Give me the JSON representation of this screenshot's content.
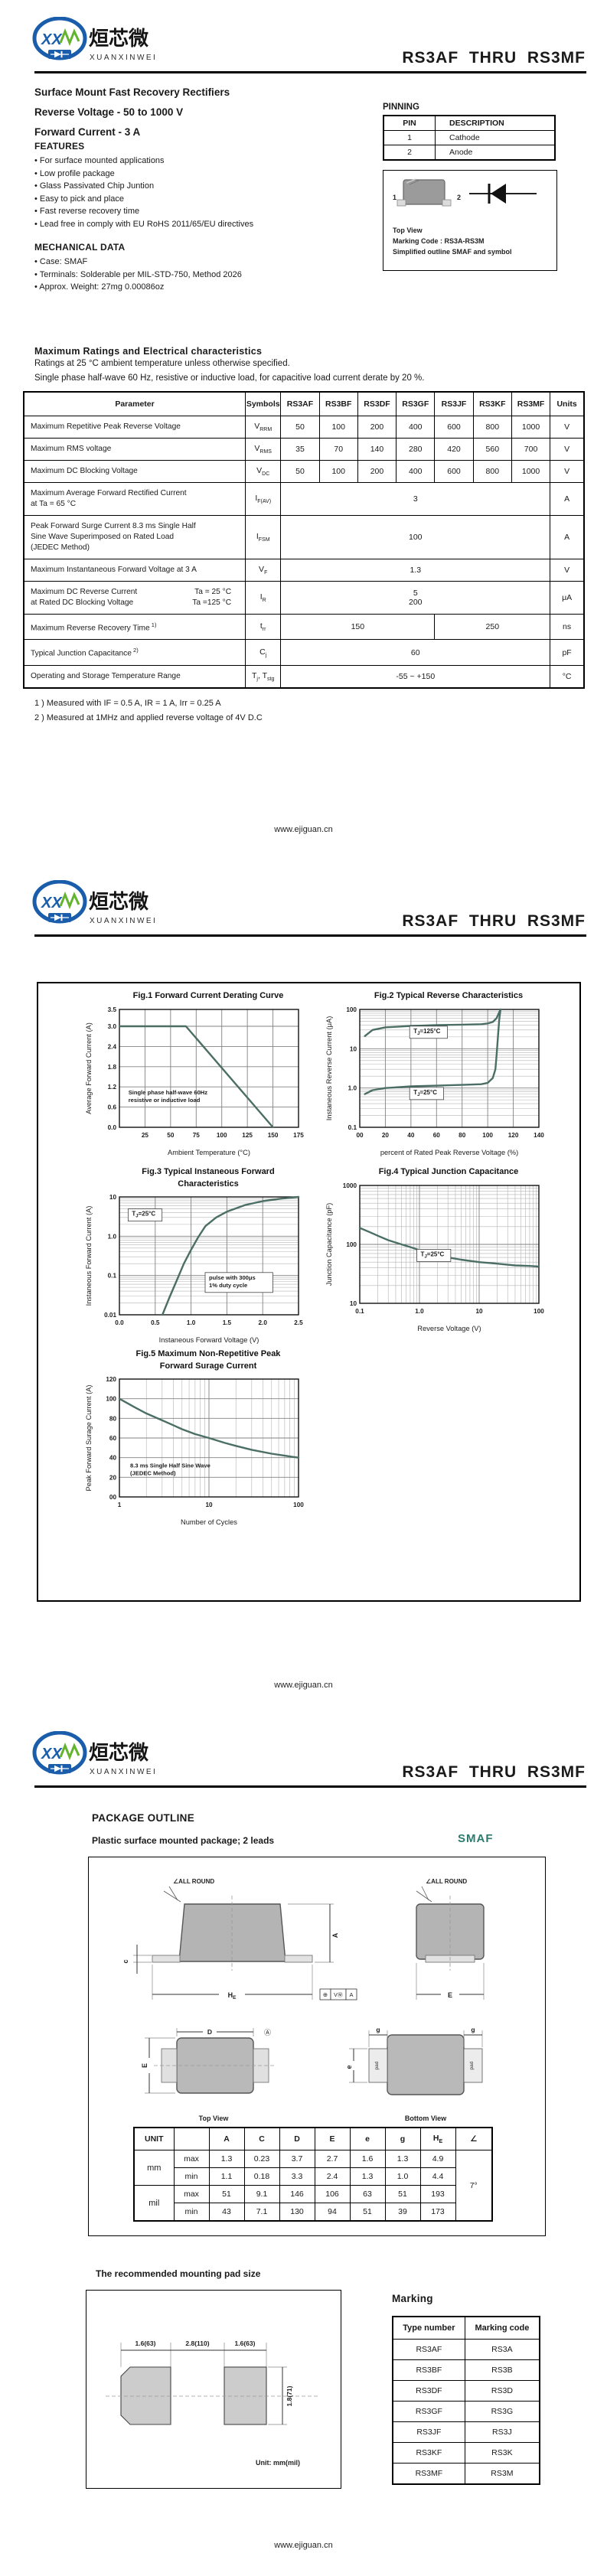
{
  "website": "www.ejiguan.cn",
  "part_title": "RS3AF  THRU  RS3MF",
  "logo": {
    "cn": "烜芯微",
    "en": "XUANXINWEI",
    "monogram": "XX"
  },
  "colors": {
    "accent_teal": "#2c7a6e",
    "chart_curve": "#4b6e65",
    "logo_blue": "#1a5dab",
    "logo_green": "#63b32e"
  },
  "page1": {
    "subtitles": [
      "Surface Mount Fast Recovery Rectifiers",
      "Reverse Voltage - 50 to 1000 V",
      "Forward Current - 3 A"
    ],
    "features": {
      "title": "FEATURES",
      "items": [
        "For surface mounted applications",
        "Low profile package",
        "Glass Passivated Chip Juntion",
        "Easy to pick and place",
        "Fast reverse recovery time",
        "Lead free in comply with EU RoHS 2011/65/EU directives"
      ]
    },
    "mechanical": {
      "title": "MECHANICAL DATA",
      "items": [
        "Case: SMAF",
        "Terminals: Solderable per MIL-STD-750, Method 2026",
        "Approx. Weight:  27mg  0.00086oz"
      ]
    },
    "pinning": {
      "title": "PINNING",
      "headers": [
        "PIN",
        "DESCRIPTION"
      ],
      "rows": [
        [
          "1",
          "Cathode"
        ],
        [
          "2",
          "Anode"
        ]
      ]
    },
    "outline_figure": {
      "pin1": "1",
      "pin2": "2",
      "top_view": "Top View",
      "marking": "Marking Code :  RS3A-RS3M",
      "caption": "Simplified outline SMAF and symbol"
    },
    "ratings": {
      "title": "Maximum Ratings and Electrical characteristics",
      "cond1": "Ratings at 25 °C ambient temperature unless otherwise specified.",
      "cond2": "Single phase half-wave 60 Hz, resistive or inductive load, for capacitive load current derate by 20 %.",
      "headers": [
        "Parameter",
        "Symbols",
        "RS3AF",
        "RS3BF",
        "RS3DF",
        "RS3GF",
        "RS3JF",
        "RS3KF",
        "RS3MF",
        "Units"
      ],
      "rows": [
        {
          "param": [
            "Maximum Repetitive Peak Reverse Voltage"
          ],
          "sym": [
            [
              "V",
              "RRM"
            ]
          ],
          "cells": [
            "50",
            "100",
            "200",
            "400",
            "600",
            "800",
            "1000"
          ],
          "unit": "V"
        },
        {
          "param": [
            "Maximum RMS voltage"
          ],
          "sym": [
            [
              "V",
              "RMS"
            ]
          ],
          "cells": [
            "35",
            "70",
            "140",
            "280",
            "420",
            "560",
            "700"
          ],
          "unit": "V"
        },
        {
          "param": [
            "Maximum DC Blocking Voltage"
          ],
          "sym": [
            [
              "V",
              "DC"
            ]
          ],
          "cells": [
            "50",
            "100",
            "200",
            "400",
            "600",
            "800",
            "1000"
          ],
          "unit": "V"
        },
        {
          "param": [
            "Maximum Average Forward Rectified Current",
            "at Ta = 65 °C"
          ],
          "sym": [
            [
              "I",
              "F(AV)"
            ]
          ],
          "span": [
            "3"
          ],
          "unit": "A"
        },
        {
          "param": [
            "Peak Forward Surge Current 8.3 ms Single Half",
            "Sine Wave Superimposed on Rated Load",
            "(JEDEC Method)"
          ],
          "sym": [
            [
              "I",
              "FSM"
            ]
          ],
          "span": [
            "100"
          ],
          "unit": "A"
        },
        {
          "param": [
            "Maximum Instantaneous Forward Voltage at 3 A"
          ],
          "sym": [
            [
              "V",
              "F"
            ]
          ],
          "span": [
            "1.3"
          ],
          "unit": "V"
        },
        {
          "param": [
            {
              "left": "Maximum DC Reverse Current",
              "right": "Ta = 25 °C"
            },
            {
              "left": "at Rated DC Blocking Voltage",
              "right": "Ta =125 °C"
            }
          ],
          "sym": [
            [
              "I",
              "R"
            ]
          ],
          "span": [
            "5",
            "200"
          ],
          "unit": "μA"
        },
        {
          "param": [
            "Maximum Reverse Recovery Time"
          ],
          "sup": "1)",
          "sym": [
            [
              "t",
              "rr"
            ]
          ],
          "split": [
            "150",
            "250"
          ],
          "unit": "ns"
        },
        {
          "param": [
            "Typical Junction Capacitance"
          ],
          "sup": "2)",
          "sym": [
            [
              "C",
              "j"
            ]
          ],
          "span": [
            "60"
          ],
          "unit": "pF"
        },
        {
          "param": [
            "Operating and Storage Temperature Range"
          ],
          "sym": [
            [
              "T",
              "j"
            ],
            [
              ", T",
              "stg"
            ]
          ],
          "span": [
            "-55 ~ +150"
          ],
          "unit": "°C"
        }
      ],
      "footnotes": [
        "1 ) Measured with IF = 0.5 A, IR = 1 A, Irr = 0.25 A",
        "2 ) Measured at 1MHz and applied reverse voltage of 4V D.C"
      ]
    }
  },
  "chart_data": [
    {
      "id": "fig1",
      "type": "line",
      "title_lines": [
        "Fig.1  Forward Current Derating Curve"
      ],
      "xlabel": "Ambient Temperature (°C)",
      "ylabel": "Average Forward Current (A)",
      "xscale": "linear",
      "yscale": "linear",
      "xlim": [
        0,
        175
      ],
      "ylim": [
        0,
        3.5
      ],
      "xticks": [
        25,
        50,
        75,
        100,
        125,
        150,
        175
      ],
      "xtick_labels": [
        "25",
        "50",
        "75",
        "100",
        "125",
        "150",
        "175"
      ],
      "yticks": [
        0,
        0.6,
        1.2,
        1.8,
        2.4,
        3.0,
        3.5
      ],
      "ytick_labels": [
        "0.0",
        "0.6",
        "1.2",
        "1.8",
        "2.4",
        "3.0",
        "3.5"
      ],
      "series": [
        {
          "name": "derating",
          "points": [
            [
              0,
              3
            ],
            [
              65,
              3
            ],
            [
              150,
              0
            ]
          ]
        }
      ],
      "annotations": [
        {
          "text": [
            "Single phase half-wave 60Hz",
            "resistive or inductive load"
          ],
          "fx": 0.05,
          "fy": 0.72,
          "boxed": false
        }
      ]
    },
    {
      "id": "fig2",
      "type": "line",
      "title_lines": [
        "Fig.2  Typical Reverse Characteristics"
      ],
      "xlabel": "percent of Rated  Peak Reverse Voltage (%)",
      "ylabel": "Instaneous Reverse Current (μA)",
      "xscale": "linear",
      "yscale": "log",
      "xlim": [
        0,
        140
      ],
      "ylim": [
        0.1,
        100
      ],
      "xticks": [
        0,
        20,
        40,
        60,
        80,
        100,
        120,
        140
      ],
      "xtick_labels": [
        "00",
        "20",
        "40",
        "60",
        "80",
        "100",
        "120",
        "140"
      ],
      "yticks": [
        0.1,
        1,
        10,
        100
      ],
      "ytick_labels": [
        "0.1",
        "1.0",
        "10",
        "100"
      ],
      "series": [
        {
          "name": "TJ=125C",
          "points": [
            [
              4,
              21
            ],
            [
              10,
              30
            ],
            [
              20,
              35
            ],
            [
              40,
              38
            ],
            [
              60,
              40
            ],
            [
              80,
              41
            ],
            [
              95,
              42
            ],
            [
              100,
              44
            ],
            [
              104,
              48
            ],
            [
              107,
              60
            ],
            [
              109,
              85
            ],
            [
              110,
              100
            ]
          ]
        },
        {
          "name": "TJ=25C",
          "points": [
            [
              4,
              0.7
            ],
            [
              10,
              0.88
            ],
            [
              20,
              1.0
            ],
            [
              40,
              1.1
            ],
            [
              60,
              1.15
            ],
            [
              80,
              1.2
            ],
            [
              95,
              1.25
            ],
            [
              100,
              1.35
            ],
            [
              104,
              1.8
            ],
            [
              106,
              3
            ],
            [
              107,
              7
            ],
            [
              108,
              20
            ],
            [
              109,
              55
            ],
            [
              110,
              100
            ]
          ]
        }
      ],
      "annotations": [
        {
          "text": [
            "TJ=125°C"
          ],
          "fx": 0.3,
          "fy": 0.2,
          "boxed": true
        },
        {
          "text": [
            "TJ=25°C"
          ],
          "fx": 0.3,
          "fy": 0.72,
          "boxed": true
        }
      ]
    },
    {
      "id": "fig3",
      "type": "line",
      "title_lines": [
        "Fig.3  Typical Instaneous Forward",
        "Characteristics"
      ],
      "xlabel": "Instaneous Forward Voltage (V)",
      "ylabel": "Instaneous Forward Current (A)",
      "xscale": "linear",
      "yscale": "log",
      "xlim": [
        0,
        2.5
      ],
      "ylim": [
        0.01,
        10
      ],
      "xticks": [
        0,
        0.5,
        1.0,
        1.5,
        2.0,
        2.5
      ],
      "xtick_labels": [
        "0.0",
        "0.5",
        "1.0",
        "1.5",
        "2.0",
        "2.5"
      ],
      "yticks": [
        0.01,
        0.1,
        1,
        10
      ],
      "ytick_labels": [
        "0.01",
        "0.1",
        "1.0",
        "10"
      ],
      "series": [
        {
          "name": "TJ=25C",
          "points": [
            [
              0.6,
              0.01
            ],
            [
              0.7,
              0.028
            ],
            [
              0.8,
              0.075
            ],
            [
              0.9,
              0.2
            ],
            [
              1.0,
              0.45
            ],
            [
              1.1,
              0.95
            ],
            [
              1.2,
              1.8
            ],
            [
              1.35,
              3
            ],
            [
              1.5,
              4.2
            ],
            [
              1.75,
              6.2
            ],
            [
              2.0,
              7.8
            ],
            [
              2.25,
              9
            ],
            [
              2.5,
              10
            ]
          ]
        }
      ],
      "annotations": [
        {
          "text": [
            "TJ=25°C"
          ],
          "fx": 0.07,
          "fy": 0.16,
          "boxed": true
        },
        {
          "text": [
            "pulse with 300μs",
            "1% duty cycle"
          ],
          "fx": 0.5,
          "fy": 0.7,
          "boxed": true
        }
      ]
    },
    {
      "id": "fig4",
      "type": "line",
      "title_lines": [
        "Fig.4  Typical Junction Capacitance"
      ],
      "xlabel": "Reverse  Voltage (V)",
      "ylabel": "Junction Capacitance (pF)",
      "xscale": "log",
      "yscale": "log",
      "xlim": [
        0.1,
        100
      ],
      "ylim": [
        10,
        1000
      ],
      "xticks": [
        0.1,
        1,
        10,
        100
      ],
      "xtick_labels": [
        "0.1",
        "1.0",
        "10",
        "100"
      ],
      "yticks": [
        10,
        100,
        1000
      ],
      "ytick_labels": [
        "10",
        "100",
        "1000"
      ],
      "series": [
        {
          "name": "TJ=25C",
          "points": [
            [
              0.1,
              190
            ],
            [
              0.15,
              160
            ],
            [
              0.2,
              140
            ],
            [
              0.3,
              118
            ],
            [
              0.5,
              100
            ],
            [
              0.7,
              90
            ],
            [
              1,
              80
            ],
            [
              1.5,
              72
            ],
            [
              2,
              66
            ],
            [
              3,
              60
            ],
            [
              5,
              55
            ],
            [
              10,
              50
            ],
            [
              20,
              47
            ],
            [
              40,
              44
            ],
            [
              70,
              43
            ],
            [
              100,
              42
            ]
          ]
        }
      ],
      "annotations": [
        {
          "text": [
            "TJ=25°C"
          ],
          "fx": 0.34,
          "fy": 0.6,
          "boxed": true
        }
      ]
    },
    {
      "id": "fig5",
      "type": "line",
      "title_lines": [
        "Fig.5  Maximum Non-Repetitive Peak",
        "Forward Surage Current"
      ],
      "xlabel": "Number of Cycles",
      "ylabel": "Peak Forward Surage Current (A)",
      "xscale": "log",
      "yscale": "linear",
      "xlim": [
        1,
        100
      ],
      "ylim": [
        0,
        120
      ],
      "xticks": [
        1,
        10,
        100
      ],
      "xtick_labels": [
        "1",
        "10",
        "100"
      ],
      "yticks": [
        0,
        20,
        40,
        60,
        80,
        100,
        120
      ],
      "ytick_labels": [
        "00",
        "20",
        "40",
        "60",
        "80",
        "100",
        "120"
      ],
      "series": [
        {
          "name": "surge",
          "points": [
            [
              1,
              100
            ],
            [
              1.5,
              91
            ],
            [
              2,
              85
            ],
            [
              3,
              78
            ],
            [
              4,
              73
            ],
            [
              5,
              69
            ],
            [
              7,
              64
            ],
            [
              10,
              60
            ],
            [
              15,
              55
            ],
            [
              20,
              52
            ],
            [
              30,
              48
            ],
            [
              50,
              44
            ],
            [
              70,
              42
            ],
            [
              100,
              40
            ]
          ]
        }
      ],
      "annotations": [
        {
          "text": [
            "8.3 ms Single Half Sine Wave",
            "(JEDEC Method)"
          ],
          "fx": 0.06,
          "fy": 0.75,
          "boxed": false
        }
      ]
    }
  ],
  "page3": {
    "package_outline": {
      "title": "PACKAGE  OUTLINE",
      "subtitle": "Plastic surface mounted package; 2 leads",
      "badge": "SMAF"
    },
    "labels": {
      "all_round": "∠ALL ROUND",
      "A": "A",
      "c": "c",
      "H": "H",
      "E_sub": "E",
      "E": "E",
      "D": "D",
      "e": "e",
      "g": "g",
      "pad": "pad",
      "datum": "Ⓐ",
      "tol1": "⊕",
      "tol2": "VⓂ",
      "tol3": "A",
      "top_view": "Top View",
      "bottom_view": "Bottom View"
    },
    "dim_table": {
      "unit": "UNIT",
      "cols": [
        "A",
        "C",
        "D",
        "E",
        "e",
        "g",
        "H_E",
        "∠"
      ],
      "mm": "mm",
      "mil": "mil",
      "max": "max",
      "min": "min",
      "rows": {
        "mm_max": [
          "1.3",
          "0.23",
          "3.7",
          "2.7",
          "1.6",
          "1.3",
          "4.9"
        ],
        "mm_min": [
          "1.1",
          "0.18",
          "3.3",
          "2.4",
          "1.3",
          "1.0",
          "4.4"
        ],
        "mil_max": [
          "51",
          "9.1",
          "146",
          "106",
          "63",
          "51",
          "193"
        ],
        "mil_min": [
          "43",
          "7.1",
          "130",
          "94",
          "51",
          "39",
          "173"
        ]
      },
      "angle": "7°"
    },
    "mounting_pad": {
      "title": "The recommended mounting pad size",
      "dim_left": "1.6(63)",
      "dim_mid": "2.8(110)",
      "dim_right": "1.6(63)",
      "dim_height": "1.8(71)",
      "unit_note": "Unit:  mm(mil)"
    },
    "marking": {
      "title": "Marking",
      "headers": [
        "Type number",
        "Marking code"
      ],
      "rows": [
        [
          "RS3AF",
          "RS3A"
        ],
        [
          "RS3BF",
          "RS3B"
        ],
        [
          "RS3DF",
          "RS3D"
        ],
        [
          "RS3GF",
          "RS3G"
        ],
        [
          "RS3JF",
          "RS3J"
        ],
        [
          "RS3KF",
          "RS3K"
        ],
        [
          "RS3MF",
          "RS3M"
        ]
      ]
    }
  }
}
